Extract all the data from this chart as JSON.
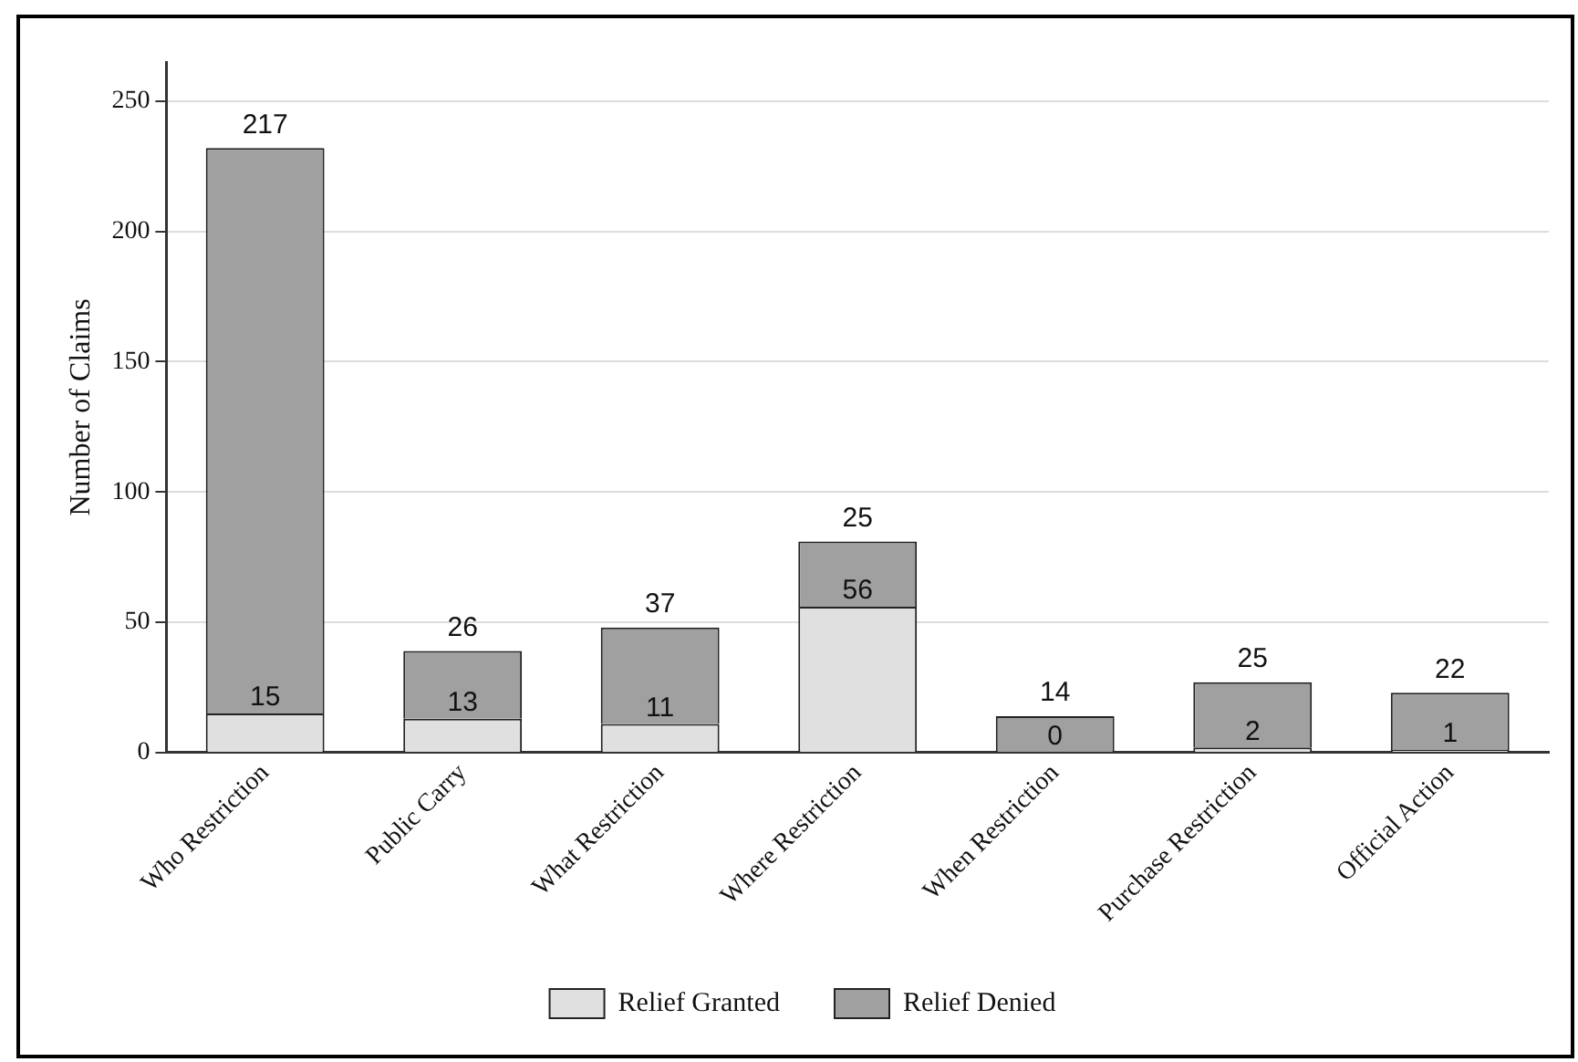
{
  "chart_data": {
    "type": "bar",
    "stacked": true,
    "ylabel": "Number of Claims",
    "categories": [
      "Who Restriction",
      "Public Carry",
      "What Restriction",
      "Where Restriction",
      "When Restriction",
      "Purchase Restriction",
      "Official Action"
    ],
    "series": [
      {
        "name": "Relief Granted",
        "color": "#e0e0e0",
        "values": [
          15,
          13,
          11,
          56,
          0,
          2,
          1
        ]
      },
      {
        "name": "Relief Denied",
        "color": "#a0a0a0",
        "values": [
          217,
          26,
          37,
          25,
          14,
          25,
          22
        ]
      }
    ],
    "ylim": [
      0,
      265
    ],
    "yticks": [
      0,
      50,
      100,
      150,
      200,
      250
    ],
    "grid": "y",
    "legend": "bottom",
    "data_labels": true
  }
}
